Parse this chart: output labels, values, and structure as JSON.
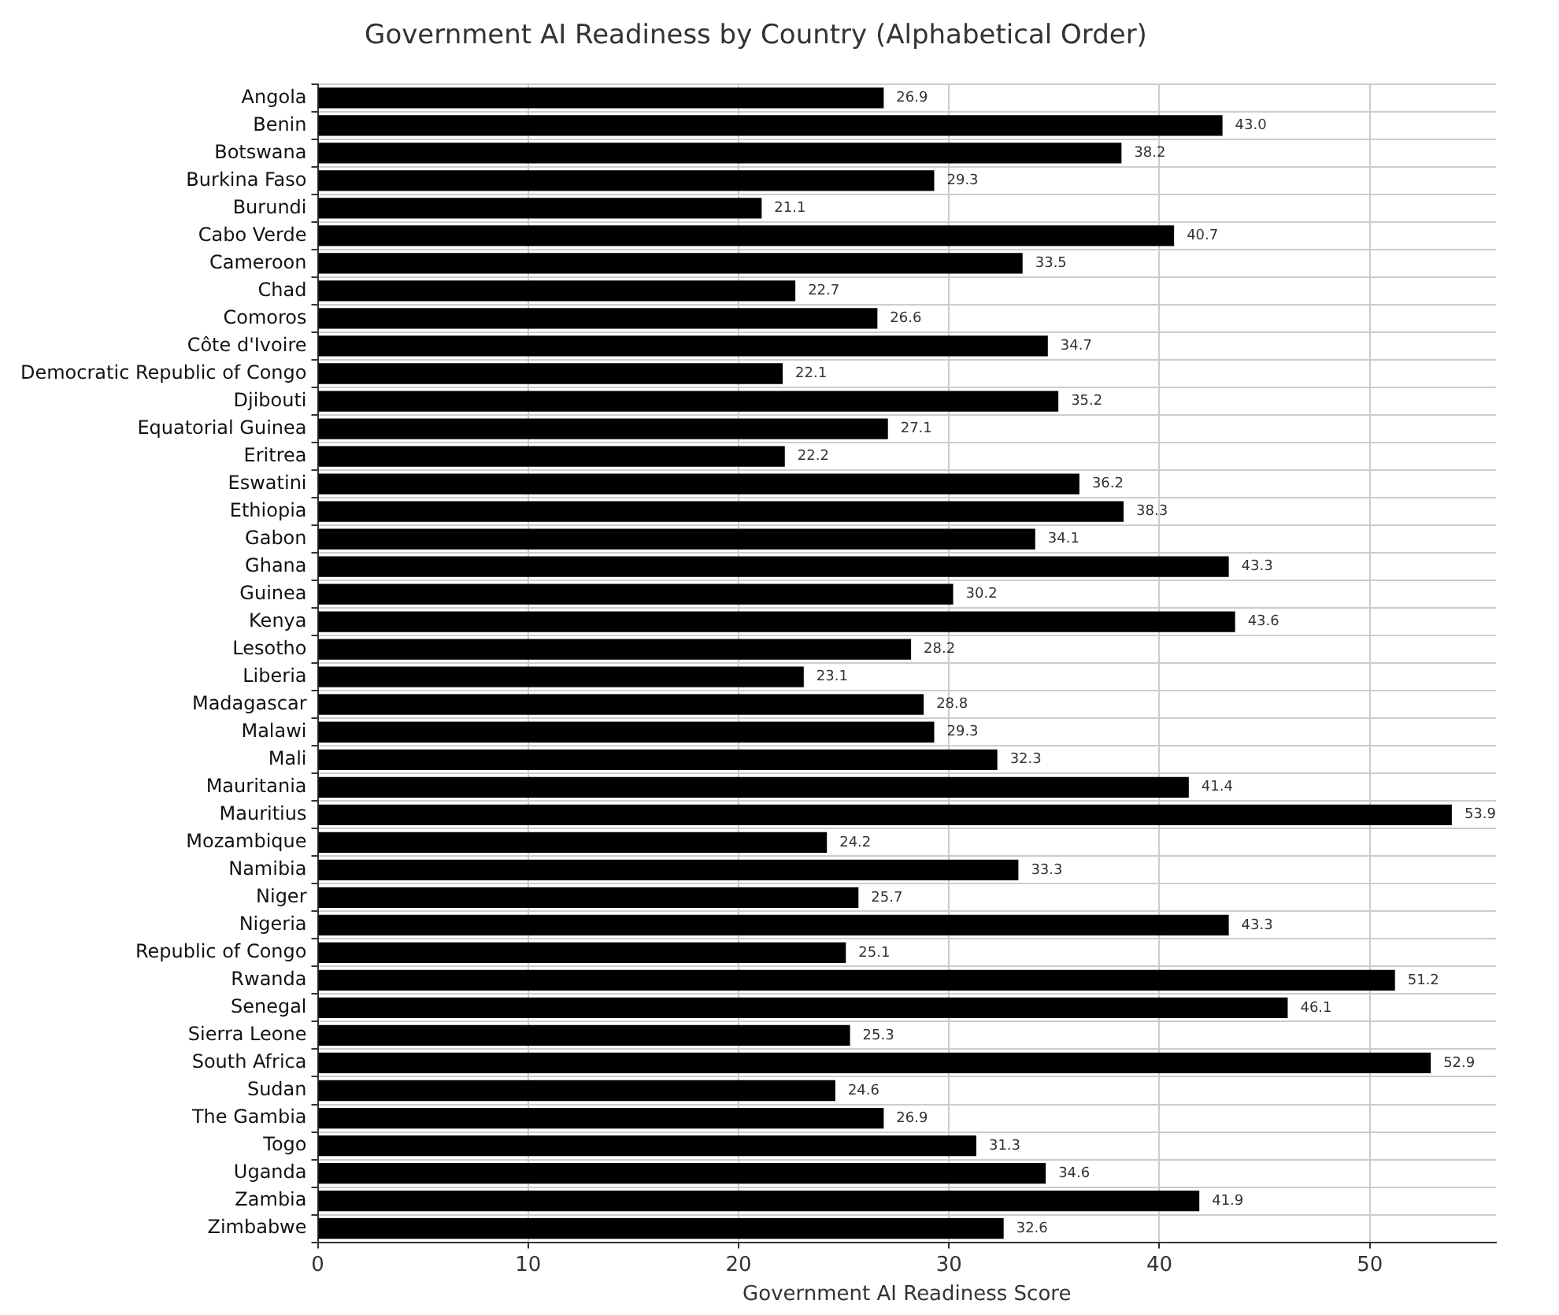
{
  "chart_data": {
    "type": "bar",
    "orientation": "horizontal",
    "title": "Government AI Readiness by Country (Alphabetical Order)",
    "xlabel": "Government AI Readiness Score",
    "categories": [
      "Angola",
      "Benin",
      "Botswana",
      "Burkina Faso",
      "Burundi",
      "Cabo Verde",
      "Cameroon",
      "Chad",
      "Comoros",
      "Côte d'Ivoire",
      "Democratic Republic of Congo",
      "Djibouti",
      "Equatorial Guinea",
      "Eritrea",
      "Eswatini",
      "Ethiopia",
      "Gabon",
      "Ghana",
      "Guinea",
      "Kenya",
      "Lesotho",
      "Liberia",
      "Madagascar",
      "Malawi",
      "Mali",
      "Mauritania",
      "Mauritius",
      "Mozambique",
      "Namibia",
      "Niger",
      "Nigeria",
      "Republic of Congo",
      "Rwanda",
      "Senegal",
      "Sierra Leone",
      "South Africa",
      "Sudan",
      "The Gambia",
      "Togo",
      "Uganda",
      "Zambia",
      "Zimbabwe"
    ],
    "values": [
      26.9,
      43.0,
      38.2,
      29.3,
      21.1,
      40.7,
      33.5,
      22.7,
      26.6,
      34.7,
      22.1,
      35.2,
      27.1,
      22.2,
      36.2,
      38.3,
      34.1,
      43.3,
      30.2,
      43.6,
      28.2,
      23.1,
      28.8,
      29.3,
      32.3,
      41.4,
      53.9,
      24.2,
      33.3,
      25.7,
      43.3,
      25.1,
      51.2,
      46.1,
      25.3,
      52.9,
      24.6,
      26.9,
      31.3,
      34.6,
      41.9,
      32.6
    ],
    "value_labels": [
      "26.9",
      "43.0",
      "38.2",
      "29.3",
      "21.1",
      "40.7",
      "33.5",
      "22.7",
      "26.6",
      "34.7",
      "22.1",
      "35.2",
      "27.1",
      "22.2",
      "36.2",
      "38.3",
      "34.1",
      "43.3",
      "30.2",
      "43.6",
      "28.2",
      "23.1",
      "28.8",
      "29.3",
      "32.3",
      "41.4",
      "53.9",
      "24.2",
      "33.3",
      "25.7",
      "43.3",
      "25.1",
      "51.2",
      "46.1",
      "25.3",
      "52.9",
      "24.6",
      "26.9",
      "31.3",
      "34.6",
      "41.9",
      "32.6"
    ],
    "color": "#000000",
    "xlim": [
      0,
      56
    ],
    "xticks": [
      0,
      10,
      20,
      30,
      40,
      50
    ],
    "grid": true,
    "legend": false
  }
}
